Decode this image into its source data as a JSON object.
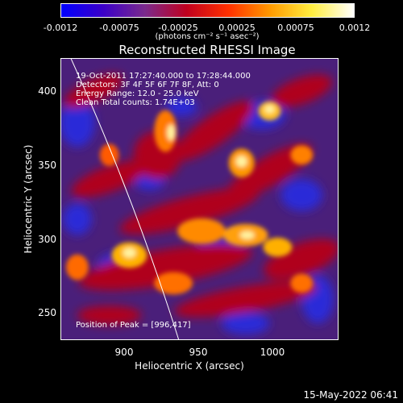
{
  "colorbar": {
    "tick_labels": [
      "-0.0012",
      "-0.00075",
      "-0.00025",
      "0.00025",
      "0.00075",
      "0.0012"
    ],
    "units": "(photons cm⁻² s⁻¹ asec⁻²)",
    "colors": [
      "#0000ff",
      "#3b00c8",
      "#7a2a8c",
      "#c0001e",
      "#ff3000",
      "#ff9a00",
      "#ffee40",
      "#ffffff"
    ]
  },
  "title": "Reconstructed RHESSI Image",
  "info": {
    "line1": "19-Oct-2011 17:27:40.000 to 17:28:44.000",
    "line2": "Detectors: 3F 4F 5F 6F 7F 8F, Att: 0",
    "line3": "Energy Range: 12.0 - 25.0 keV",
    "line4": "Clean     Total counts: 1.74E+03",
    "peak": "Position of Peak = [996,417]"
  },
  "chart_data": {
    "type": "heatmap",
    "title": "Reconstructed RHESSI Image",
    "xlabel": "Heliocentric X (arcsec)",
    "ylabel": "Heliocentric Y (arcsec)",
    "xlim": [
      858,
      1046
    ],
    "ylim": [
      231,
      422
    ],
    "x_ticks": [
      900,
      950,
      1000
    ],
    "y_ticks": [
      250,
      300,
      350,
      400
    ],
    "colorbar_range": [
      -0.0012,
      0.0012
    ],
    "peak_position": [
      996,
      417
    ]
  },
  "x_axis": {
    "label": "Heliocentric X (arcsec)",
    "ticks": [
      "900",
      "950",
      "1000"
    ]
  },
  "y_axis": {
    "label": "Heliocentric Y (arcsec)",
    "ticks": [
      "250",
      "300",
      "350",
      "400"
    ]
  },
  "footer": {
    "timestamp": "15-May-2022 06:41"
  }
}
